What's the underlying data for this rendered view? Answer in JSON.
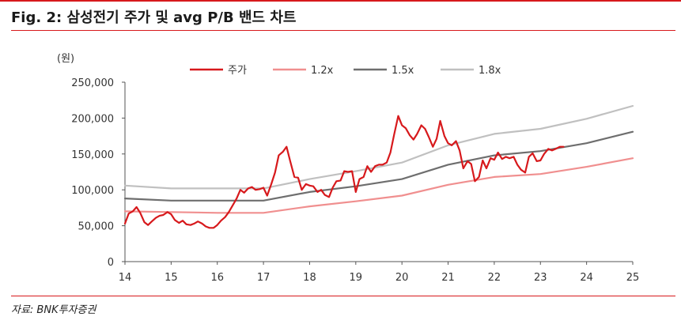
{
  "figure": {
    "title": "Fig. 2: 삼성전기 주가 및 avg P/B 밴드 차트",
    "source": "자료: BNK투자증권",
    "unit": "(원)"
  },
  "colors": {
    "price": "#d7191c",
    "band_1_2x": "#f08f8f",
    "band_1_5x": "#6e6e6e",
    "band_1_8x": "#c0c0c0",
    "accent": "#d7191c"
  },
  "chart_data": {
    "type": "line",
    "title": "Fig. 2: 삼성전기 주가 및 avg P/B 밴드 차트",
    "xlabel": "",
    "ylabel": "(원)",
    "xlim": [
      14,
      25
    ],
    "ylim": [
      0,
      250000
    ],
    "x_ticks": [
      "14",
      "15",
      "16",
      "17",
      "18",
      "19",
      "20",
      "21",
      "22",
      "23",
      "24",
      "25"
    ],
    "y_ticks": [
      "0",
      "50,000",
      "100,000",
      "150,000",
      "200,000",
      "250,000"
    ],
    "grid": false,
    "legend_position": "top",
    "series": [
      {
        "name": "주가",
        "color": "#d7191c",
        "points": [
          [
            14.0,
            53000
          ],
          [
            14.08,
            67000
          ],
          [
            14.17,
            70000
          ],
          [
            14.25,
            76000
          ],
          [
            14.33,
            68000
          ],
          [
            14.42,
            55000
          ],
          [
            14.5,
            51000
          ],
          [
            14.58,
            56000
          ],
          [
            14.67,
            61000
          ],
          [
            14.75,
            64000
          ],
          [
            14.83,
            65000
          ],
          [
            14.92,
            69000
          ],
          [
            15.0,
            66000
          ],
          [
            15.08,
            58000
          ],
          [
            15.17,
            54000
          ],
          [
            15.25,
            57000
          ],
          [
            15.33,
            52000
          ],
          [
            15.42,
            51000
          ],
          [
            15.5,
            53000
          ],
          [
            15.58,
            56000
          ],
          [
            15.67,
            53000
          ],
          [
            15.75,
            49000
          ],
          [
            15.83,
            47000
          ],
          [
            15.92,
            47000
          ],
          [
            16.0,
            51000
          ],
          [
            16.08,
            57000
          ],
          [
            16.17,
            62000
          ],
          [
            16.25,
            69000
          ],
          [
            16.33,
            78000
          ],
          [
            16.42,
            88000
          ],
          [
            16.5,
            100000
          ],
          [
            16.58,
            96000
          ],
          [
            16.67,
            102000
          ],
          [
            16.75,
            104000
          ],
          [
            16.83,
            100000
          ],
          [
            16.92,
            101000
          ],
          [
            17.0,
            103000
          ],
          [
            17.08,
            92000
          ],
          [
            17.17,
            108000
          ],
          [
            17.25,
            124000
          ],
          [
            17.33,
            148000
          ],
          [
            17.42,
            153000
          ],
          [
            17.5,
            160000
          ],
          [
            17.58,
            140000
          ],
          [
            17.67,
            118000
          ],
          [
            17.75,
            117000
          ],
          [
            17.83,
            100000
          ],
          [
            17.92,
            108000
          ],
          [
            18.0,
            106000
          ],
          [
            18.08,
            105000
          ],
          [
            18.17,
            97000
          ],
          [
            18.25,
            100000
          ],
          [
            18.33,
            93000
          ],
          [
            18.42,
            90000
          ],
          [
            18.5,
            103000
          ],
          [
            18.58,
            112000
          ],
          [
            18.67,
            113000
          ],
          [
            18.75,
            126000
          ],
          [
            18.83,
            125000
          ],
          [
            18.92,
            126000
          ],
          [
            19.0,
            97000
          ],
          [
            19.08,
            115000
          ],
          [
            19.17,
            118000
          ],
          [
            19.25,
            133000
          ],
          [
            19.33,
            125000
          ],
          [
            19.42,
            133000
          ],
          [
            19.5,
            135000
          ],
          [
            19.58,
            135000
          ],
          [
            19.67,
            138000
          ],
          [
            19.75,
            152000
          ],
          [
            19.83,
            177000
          ],
          [
            19.92,
            203000
          ],
          [
            20.0,
            190000
          ],
          [
            20.08,
            186000
          ],
          [
            20.17,
            176000
          ],
          [
            20.25,
            170000
          ],
          [
            20.33,
            178000
          ],
          [
            20.42,
            190000
          ],
          [
            20.5,
            185000
          ],
          [
            20.58,
            174000
          ],
          [
            20.67,
            160000
          ],
          [
            20.75,
            171000
          ],
          [
            20.83,
            196000
          ],
          [
            20.92,
            175000
          ],
          [
            21.0,
            165000
          ],
          [
            21.08,
            162000
          ],
          [
            21.17,
            168000
          ],
          [
            21.25,
            155000
          ],
          [
            21.33,
            130000
          ],
          [
            21.42,
            140000
          ],
          [
            21.5,
            136000
          ],
          [
            21.58,
            112000
          ],
          [
            21.67,
            118000
          ],
          [
            21.75,
            141000
          ],
          [
            21.83,
            130000
          ],
          [
            21.92,
            144000
          ],
          [
            22.0,
            142000
          ],
          [
            22.08,
            152000
          ],
          [
            22.17,
            143000
          ],
          [
            22.25,
            146000
          ],
          [
            22.33,
            144000
          ],
          [
            22.42,
            146000
          ],
          [
            22.5,
            135000
          ],
          [
            22.58,
            128000
          ],
          [
            22.67,
            124000
          ],
          [
            22.75,
            146000
          ],
          [
            22.83,
            151000
          ],
          [
            22.92,
            140000
          ],
          [
            23.0,
            141000
          ],
          [
            23.08,
            150000
          ],
          [
            23.17,
            157000
          ],
          [
            23.25,
            155000
          ],
          [
            23.33,
            157000
          ],
          [
            23.42,
            160000
          ],
          [
            23.5,
            160000
          ]
        ]
      },
      {
        "name": "1.2x",
        "color": "#f08f8f",
        "points": [
          [
            14.0,
            70000
          ],
          [
            15.0,
            69000
          ],
          [
            16.0,
            68000
          ],
          [
            17.0,
            68000
          ],
          [
            18.0,
            77000
          ],
          [
            19.0,
            84000
          ],
          [
            20.0,
            92000
          ],
          [
            21.0,
            107000
          ],
          [
            22.0,
            118000
          ],
          [
            23.0,
            122000
          ],
          [
            24.0,
            132000
          ],
          [
            25.0,
            144000
          ]
        ]
      },
      {
        "name": "1.5x",
        "color": "#6e6e6e",
        "points": [
          [
            14.0,
            88000
          ],
          [
            15.0,
            85000
          ],
          [
            16.0,
            85000
          ],
          [
            17.0,
            85000
          ],
          [
            18.0,
            97000
          ],
          [
            19.0,
            105000
          ],
          [
            20.0,
            115000
          ],
          [
            21.0,
            135000
          ],
          [
            22.0,
            148000
          ],
          [
            23.0,
            154000
          ],
          [
            24.0,
            165000
          ],
          [
            25.0,
            181000
          ]
        ]
      },
      {
        "name": "1.8x",
        "color": "#c0c0c0",
        "points": [
          [
            14.0,
            106000
          ],
          [
            15.0,
            102000
          ],
          [
            16.0,
            102000
          ],
          [
            17.0,
            102000
          ],
          [
            18.0,
            115000
          ],
          [
            19.0,
            126000
          ],
          [
            20.0,
            138000
          ],
          [
            21.0,
            162000
          ],
          [
            22.0,
            178000
          ],
          [
            23.0,
            185000
          ],
          [
            24.0,
            199000
          ],
          [
            25.0,
            217000
          ]
        ]
      }
    ]
  }
}
